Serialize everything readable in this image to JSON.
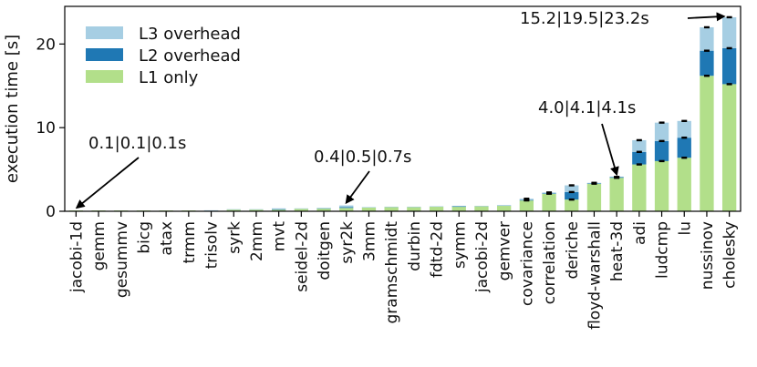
{
  "chart_data": {
    "type": "bar",
    "stacked": true,
    "ylabel": "execution time [s]",
    "xlabel": "",
    "ylim": [
      0,
      24.5
    ],
    "yticks": [
      0,
      10,
      20
    ],
    "grid": false,
    "legend_position": "top-left",
    "colors": {
      "L1 only": "#b2df8a",
      "L2 overhead": "#1f78b4",
      "L3 overhead": "#a6cee3",
      "error_mark": "#000000"
    },
    "categories": [
      "jacobi-1d",
      "gemm",
      "gesummv",
      "bicg",
      "atax",
      "trmm",
      "trisolv",
      "syrk",
      "2mm",
      "mvt",
      "seidel-2d",
      "doitgen",
      "syr2k",
      "3mm",
      "gramschmidt",
      "durbin",
      "fdtd-2d",
      "symm",
      "jacobi-2d",
      "gemver",
      "covariance",
      "correlation",
      "deriche",
      "floyd-warshall",
      "heat-3d",
      "adi",
      "ludcmp",
      "lu",
      "nussinov",
      "cholesky"
    ],
    "series": [
      {
        "name": "L1 only",
        "values": [
          0.1,
          0.1,
          0.1,
          0.1,
          0.1,
          0.1,
          0.1,
          0.2,
          0.2,
          0.2,
          0.3,
          0.35,
          0.4,
          0.45,
          0.5,
          0.5,
          0.55,
          0.55,
          0.6,
          0.65,
          1.3,
          2.1,
          1.4,
          3.3,
          4.0,
          5.6,
          6.0,
          6.4,
          16.2,
          15.2
        ]
      },
      {
        "name": "L2 overhead",
        "values": [
          0,
          0,
          0,
          0,
          0,
          0,
          0,
          0,
          0,
          0.05,
          0,
          0.02,
          0.1,
          0,
          0,
          0,
          0,
          0.05,
          0,
          0,
          0.05,
          0.05,
          0.9,
          0.05,
          0.1,
          1.5,
          2.4,
          2.4,
          3.0,
          4.3
        ]
      },
      {
        "name": "L3 overhead",
        "values": [
          0,
          0,
          0,
          0,
          0,
          0,
          0.02,
          0.05,
          0.05,
          0.1,
          0.05,
          0.03,
          0.2,
          0.05,
          0.05,
          0.05,
          0.05,
          0.05,
          0.05,
          0.1,
          0.15,
          0.1,
          0.8,
          0.05,
          0.0,
          1.4,
          2.2,
          2.0,
          2.8,
          3.7
        ]
      }
    ],
    "legend": [
      "L3 overhead",
      "L2 overhead",
      "L1 only"
    ],
    "annotations": [
      {
        "text": "0.1|0.1|0.1s",
        "target_category": "jacobi-1d",
        "target_value": 0.1
      },
      {
        "text": "0.4|0.5|0.7s",
        "target_category": "syr2k",
        "target_value": 0.7
      },
      {
        "text": "4.0|4.1|4.1s",
        "target_category": "heat-3d",
        "target_value": 4.1
      },
      {
        "text": "15.2|19.5|23.2s",
        "target_category": "cholesky",
        "target_value": 23.2
      }
    ]
  }
}
